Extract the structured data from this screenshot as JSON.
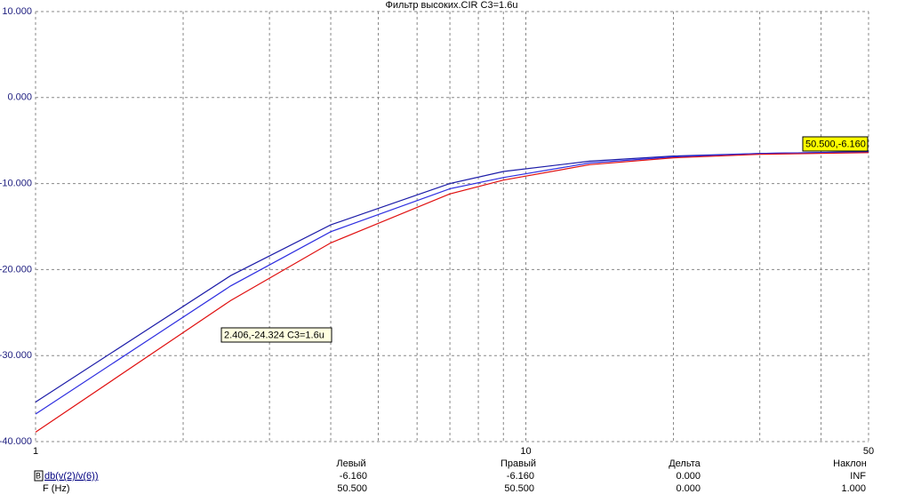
{
  "chart_data": {
    "type": "line",
    "title": "Фильтр высоких.CIR C3=1.6u",
    "log_x": true,
    "grid": true,
    "x": [
      1,
      2.5,
      4,
      7,
      9,
      13.5,
      20,
      30,
      50
    ],
    "series": [
      {
        "color": "#1c1ca8",
        "values": [
          -35.4,
          -20.7,
          -14.8,
          -10.0,
          -8.6,
          -7.4,
          -6.8,
          -6.5,
          -6.3
        ]
      },
      {
        "color": "#2e2ee0",
        "values": [
          -36.8,
          -21.9,
          -15.6,
          -10.6,
          -9.3,
          -7.6,
          -6.9,
          -6.5,
          -6.3
        ]
      },
      {
        "color": "#e01010",
        "values": [
          -38.9,
          -23.6,
          -16.9,
          -11.2,
          -9.6,
          -7.8,
          -7.0,
          -6.6,
          -6.4
        ]
      }
    ],
    "xlim": [
      1,
      50
    ],
    "xticks": [
      1,
      10,
      50
    ],
    "x_minor_grid": [
      2,
      3,
      4,
      5,
      6,
      7,
      8,
      9,
      20,
      30,
      40
    ],
    "ylim": [
      -40,
      10
    ],
    "yticks": [
      {
        "value": 10,
        "label": "10.000"
      },
      {
        "value": 0,
        "label": "0.000"
      },
      {
        "value": -10,
        "label": "-10.000"
      },
      {
        "value": -20,
        "label": "-20.000"
      },
      {
        "value": -30,
        "label": "-30.000"
      },
      {
        "value": -40,
        "label": "-40.000"
      }
    ],
    "annotations": [
      "2.406,-24.324 C3=1.6u",
      "50.500,-6.160"
    ],
    "cursor_table": {
      "columns": [
        "Левый",
        "Правый",
        "Дельта",
        "Наклон"
      ],
      "marker": "B",
      "rows": [
        {
          "name": "db(v(2)/v(6))",
          "cells": [
            "-6.160",
            "-6.160",
            "0.000",
            "INF"
          ]
        },
        {
          "name": "F (Hz)",
          "cells": [
            "50.500",
            "50.500",
            "0.000",
            "1.000"
          ]
        }
      ]
    }
  }
}
